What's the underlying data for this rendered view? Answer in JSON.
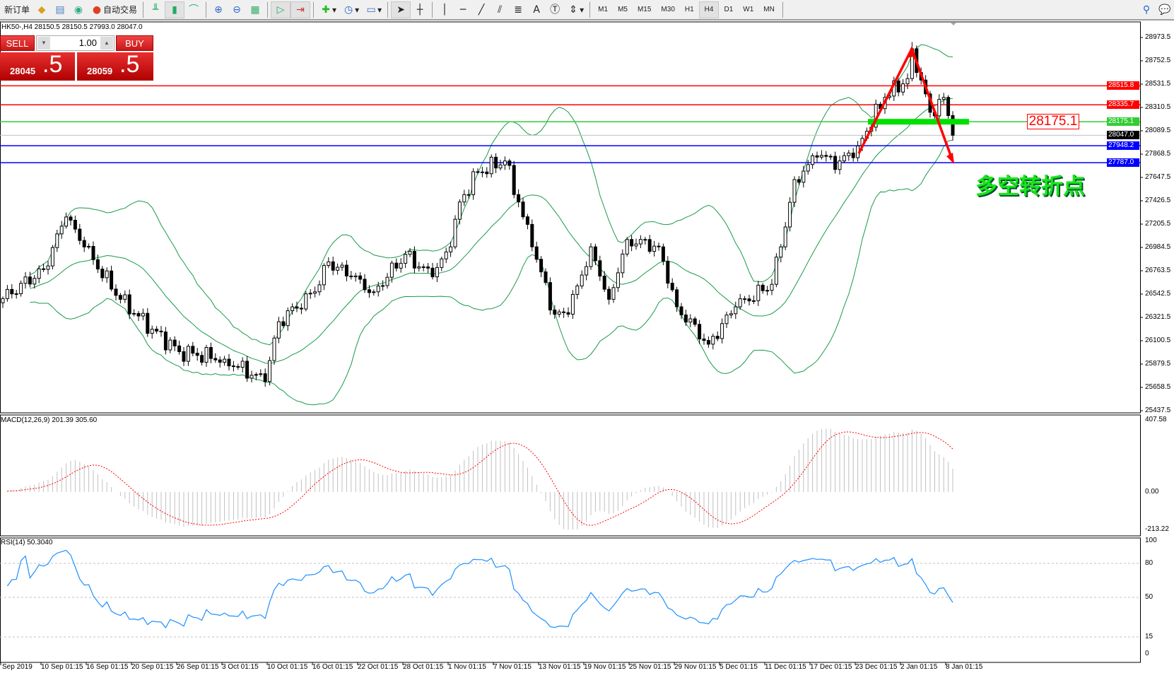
{
  "toolbar": {
    "new_order": "新订单",
    "auto_trading": "自动交易",
    "timeframes": [
      "M1",
      "M5",
      "M15",
      "M30",
      "H1",
      "H4",
      "D1",
      "W1",
      "MN"
    ],
    "active_timeframe": "H4"
  },
  "chart": {
    "header": "HK50-,H4  28150.5 28150.5 27993.0 28047.0",
    "symbol": "HK50-",
    "timeframe": "H4",
    "ohlc": {
      "open": 28150.5,
      "high": 28150.5,
      "low": 27993.0,
      "close": 28047.0
    }
  },
  "trade_panel": {
    "sell_label": "SELL",
    "buy_label": "BUY",
    "lot": "1.00",
    "sell_price_main": "28045",
    "sell_price_big": ".5",
    "buy_price_main": "28059",
    "buy_price_big": ".5"
  },
  "annotation": {
    "text": "多空转折点",
    "level_box": "28175.1"
  },
  "price_axis": [
    "28973.5",
    "28752.5",
    "28531.5",
    "28310.5",
    "28089.5",
    "27868.5",
    "27647.5",
    "27426.5",
    "27205.5",
    "26984.5",
    "26763.5",
    "26542.5",
    "26321.5",
    "26100.5",
    "25879.5",
    "25658.5",
    "25437.5"
  ],
  "levels": [
    {
      "price": 28515.8,
      "label": "28515.8",
      "color": "#ff0000"
    },
    {
      "price": 28335.7,
      "label": "28335.7",
      "color": "#ff0000"
    },
    {
      "price": 28175.1,
      "label": "28175.1",
      "color": "#33cc33"
    },
    {
      "price": 28047.0,
      "label": "28047.0",
      "color": "#000000",
      "line": "#c0c0c0"
    },
    {
      "price": 27948.2,
      "label": "27948.2",
      "color": "#0000ff"
    },
    {
      "price": 27787.0,
      "label": "27787.0",
      "color": "#0000ff"
    }
  ],
  "macd": {
    "label": "MACD(12,26,9) 201.39 305.60",
    "axis": [
      "407.58",
      "0.00",
      "-213.22"
    ],
    "range": [
      -213.22,
      407.58
    ]
  },
  "rsi": {
    "label": "RSI(14) 50.3040",
    "axis": [
      "100",
      "80",
      "50",
      "15",
      "0"
    ],
    "levels": [
      80,
      50,
      15
    ]
  },
  "time_axis": [
    "Sep 2019",
    "10 Sep 01:15",
    "16 Sep 01:15",
    "20 Sep 01:15",
    "26 Sep 01:15",
    "3 Oct 01:15",
    "10 Oct 01:15",
    "16 Oct 01:15",
    "22 Oct 01:15",
    "28 Oct 01:15",
    "1 Nov 01:15",
    "7 Nov 01:15",
    "13 Nov 01:15",
    "19 Nov 01:15",
    "25 Nov 01:15",
    "29 Nov 01:15",
    "5 Dec 01:15",
    "11 Dec 01:15",
    "17 Dec 01:15",
    "23 Dec 01:15",
    "2 Jan 01:15",
    "8 Jan 01:15"
  ],
  "chart_data": {
    "type": "candlestick",
    "price_range": [
      25437.5,
      28973.5
    ],
    "approx_close_by_bar": [
      [
        0,
        26500
      ],
      [
        9,
        26777
      ],
      [
        14,
        27273
      ],
      [
        18,
        26989
      ],
      [
        26,
        26493
      ],
      [
        33,
        26210
      ],
      [
        39,
        25997
      ],
      [
        49,
        25926
      ],
      [
        58,
        25714
      ],
      [
        61,
        26281
      ],
      [
        69,
        26564
      ],
      [
        72,
        26848
      ],
      [
        77,
        26706
      ],
      [
        82,
        26564
      ],
      [
        89,
        26919
      ],
      [
        95,
        26706
      ],
      [
        99,
        26990
      ],
      [
        101,
        27415
      ],
      [
        105,
        27698
      ],
      [
        111,
        27804
      ],
      [
        114,
        27415
      ],
      [
        117,
        26990
      ],
      [
        122,
        26352
      ],
      [
        125,
        26352
      ],
      [
        130,
        26990
      ],
      [
        134,
        26493
      ],
      [
        138,
        27060
      ],
      [
        145,
        26990
      ],
      [
        149,
        26422
      ],
      [
        156,
        26068
      ],
      [
        162,
        26422
      ],
      [
        170,
        26635
      ],
      [
        172,
        26990
      ],
      [
        175,
        27627
      ],
      [
        180,
        27840
      ],
      [
        185,
        27804
      ],
      [
        189,
        27946
      ],
      [
        195,
        28406
      ],
      [
        200,
        28584
      ],
      [
        201,
        28867
      ],
      [
        205,
        28265
      ],
      [
        208,
        28406
      ],
      [
        210,
        28047
      ]
    ],
    "indicators": [
      "Bollinger Bands(20,2)",
      "MACD(12,26,9)",
      "RSI(14)"
    ],
    "colors": {
      "bands": "#1a9a4a",
      "macd_hist": "#c0c0c0",
      "macd_signal": "#ff0000",
      "rsi": "#1e90ff",
      "arrows": "#ff0000",
      "support_zone": "#00e000"
    }
  }
}
